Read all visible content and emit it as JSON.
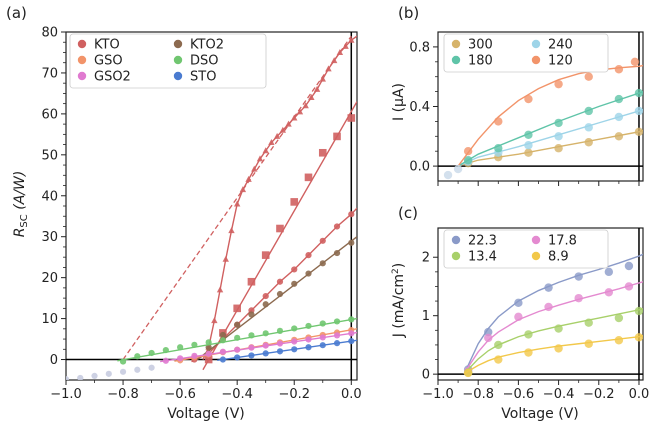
{
  "figure": {
    "panels": [
      "(a)",
      "(b)",
      "(c)"
    ]
  },
  "chart_data": [
    {
      "type": "line",
      "panel_label": "(a)",
      "xlabel": "Voltage (V)",
      "ylabel_main": "R",
      "ylabel_sub": "SC",
      "ylabel_unit": " (A/W)",
      "xlim": [
        -1.0,
        0.02
      ],
      "ylim": [
        -5,
        80
      ],
      "xticks": [
        -1.0,
        -0.8,
        -0.6,
        -0.4,
        -0.2,
        0.0
      ],
      "xtick_labels": [
        "−1.0",
        "−0.8",
        "−0.6",
        "−0.4",
        "−0.2",
        "0.0"
      ],
      "yticks": [
        0,
        10,
        20,
        30,
        40,
        50,
        60,
        70,
        80
      ],
      "ytick_labels": [
        "0",
        "10",
        "20",
        "30",
        "40",
        "50",
        "60",
        "70",
        "80"
      ],
      "legend_position": "top-left",
      "legend": [
        "KTO",
        "KTO2",
        "GSO",
        "DSO",
        "GSO2",
        "STO"
      ],
      "dashed_line": {
        "color": "#d06060",
        "x": [
          -0.8,
          0.0
        ],
        "y": [
          0,
          79
        ]
      },
      "series": [
        {
          "name": "KTO",
          "color": "#d06060",
          "marker": "triangle",
          "x": [
            -0.5,
            -0.48,
            -0.46,
            -0.44,
            -0.42,
            -0.4,
            -0.38,
            -0.36,
            -0.34,
            -0.32,
            -0.3,
            -0.28,
            -0.26,
            -0.24,
            -0.22,
            -0.2,
            -0.18,
            -0.16,
            -0.14,
            -0.12,
            -0.1,
            -0.08,
            -0.06,
            -0.04,
            -0.02,
            0.0
          ],
          "y": [
            3,
            9.5,
            17,
            24.5,
            31.5,
            38,
            41.5,
            44,
            46.5,
            49,
            51,
            53,
            54.5,
            56,
            57.5,
            59,
            60.5,
            62,
            64,
            66,
            68.5,
            71,
            73,
            75,
            76.5,
            78
          ],
          "fit_x": [
            -0.52,
            -0.5,
            -0.48,
            -0.46,
            -0.44,
            -0.42,
            -0.4,
            -0.38,
            -0.36,
            -0.34,
            -0.32,
            -0.3,
            -0.28,
            -0.26,
            -0.24,
            -0.22,
            -0.2,
            -0.18,
            -0.16,
            -0.14,
            -0.12,
            -0.1,
            -0.08,
            -0.06,
            -0.04,
            -0.02,
            0.0,
            0.02
          ],
          "fit_y": [
            0,
            3,
            9.5,
            17,
            24.5,
            31.5,
            38,
            41.5,
            44,
            46.5,
            49,
            51,
            53,
            54.5,
            56,
            57.5,
            59,
            60.5,
            62,
            64,
            66,
            68.5,
            71,
            73,
            75,
            76.5,
            78,
            79
          ]
        },
        {
          "name": "KTO",
          "color": "#d06060",
          "marker": "square",
          "x": [
            -0.5,
            -0.45,
            -0.4,
            -0.35,
            -0.3,
            -0.25,
            -0.2,
            -0.15,
            -0.1,
            -0.05,
            0.0
          ],
          "y": [
            0,
            6.5,
            12.5,
            19,
            25.5,
            32,
            38.5,
            44.5,
            50.5,
            54.5,
            59
          ],
          "fit_x": [
            -0.52,
            0.02
          ],
          "fit_y": [
            -2.5,
            63
          ]
        },
        {
          "name": "KTO",
          "color": "#d06060",
          "marker": "circle",
          "x": [
            -0.55,
            -0.5,
            -0.45,
            -0.4,
            -0.35,
            -0.3,
            -0.25,
            -0.2,
            -0.15,
            -0.1,
            -0.05,
            0.0
          ],
          "y": [
            0,
            1.5,
            5,
            8.5,
            12,
            15.5,
            19,
            22,
            25.5,
            29,
            32.5,
            35.5
          ],
          "fit_x": [
            -0.56,
            -0.5,
            -0.45,
            -0.4,
            -0.35,
            -0.3,
            -0.25,
            -0.2,
            -0.15,
            -0.1,
            -0.05,
            0.0,
            0.02
          ],
          "fit_y": [
            -0.5,
            1.5,
            5,
            8.5,
            12,
            15.5,
            19,
            22,
            25.5,
            29,
            32.5,
            35.5,
            37
          ]
        },
        {
          "name": "KTO2",
          "color": "#8c6a4f",
          "marker": "circle",
          "x": [
            -0.5,
            -0.45,
            -0.4,
            -0.35,
            -0.3,
            -0.25,
            -0.2,
            -0.15,
            -0.1,
            -0.05,
            0.0
          ],
          "y": [
            3,
            6,
            8.5,
            11,
            13.5,
            16,
            18.5,
            21,
            23.5,
            26,
            28.5
          ],
          "fit_x": [
            -0.54,
            0.02
          ],
          "fit_y": [
            0,
            30
          ]
        },
        {
          "name": "DSO",
          "color": "#70c670",
          "marker": "circle",
          "x": [
            -0.8,
            -0.75,
            -0.7,
            -0.65,
            -0.6,
            -0.55,
            -0.5,
            -0.45,
            -0.4,
            -0.35,
            -0.3,
            -0.25,
            -0.2,
            -0.15,
            -0.1,
            -0.05,
            0.0
          ],
          "y": [
            -0.5,
            0.8,
            1.6,
            2.3,
            3,
            3.6,
            4.2,
            4.7,
            5.3,
            5.9,
            6.4,
            7,
            7.6,
            8.2,
            8.8,
            9.3,
            9.8
          ],
          "fit_x": [
            -0.82,
            0.02
          ],
          "fit_y": [
            -0.3,
            10
          ]
        },
        {
          "name": "GSO",
          "color": "#f2946a",
          "marker": "circle",
          "x": [
            -0.6,
            -0.55,
            -0.5,
            -0.45,
            -0.4,
            -0.35,
            -0.3,
            -0.25,
            -0.2,
            -0.15,
            -0.1,
            -0.05,
            0.0
          ],
          "y": [
            -0.2,
            0.5,
            1.2,
            1.8,
            2.4,
            3,
            3.6,
            4.2,
            4.8,
            5.4,
            6,
            6.6,
            7.2
          ],
          "fit_x": [
            -0.62,
            0.02
          ],
          "fit_y": [
            -0.4,
            7.5
          ]
        },
        {
          "name": "GSO2",
          "color": "#e07ad0",
          "marker": "circle",
          "x": [
            -0.65,
            -0.6,
            -0.55,
            -0.5,
            -0.45,
            -0.4,
            -0.35,
            -0.3,
            -0.25,
            -0.2,
            -0.15,
            -0.1,
            -0.05,
            0.0
          ],
          "y": [
            -0.3,
            0.3,
            0.9,
            1.4,
            1.9,
            2.4,
            2.9,
            3.4,
            3.9,
            4.4,
            4.9,
            5.4,
            5.9,
            6.4
          ],
          "fit_x": [
            -0.67,
            0.02
          ],
          "fit_y": [
            -0.5,
            6.6
          ]
        },
        {
          "name": "STO",
          "color": "#4a7bd0",
          "marker": "circle",
          "x": [
            -0.45,
            -0.4,
            -0.35,
            -0.3,
            -0.25,
            -0.2,
            -0.15,
            -0.1,
            -0.05,
            0.0
          ],
          "y": [
            0,
            0.5,
            1,
            1.5,
            2,
            2.5,
            3,
            3.5,
            4,
            4.5
          ],
          "fit_x": [
            -0.47,
            0.02
          ],
          "fit_y": [
            -0.2,
            4.7
          ]
        },
        {
          "name": "",
          "color": "#c8cce0",
          "marker": "circle",
          "x": [
            -1.0,
            -0.95,
            -0.9,
            -0.85,
            -0.8,
            -0.75,
            -0.7
          ],
          "y": [
            -4.8,
            -4.5,
            -4,
            -3.5,
            -3,
            -2.5,
            -2
          ]
        }
      ]
    },
    {
      "type": "line",
      "panel_label": "(b)",
      "xlabel": "",
      "ylabel": "I (μA)",
      "xlim": [
        -1.0,
        0.02
      ],
      "ylim": [
        -0.1,
        0.9
      ],
      "xticks": [
        -1.0,
        -0.8,
        -0.6,
        -0.4,
        -0.2,
        0.0
      ],
      "yticks": [
        0.0,
        0.4,
        0.8
      ],
      "ytick_labels": [
        "0.0",
        "0.4",
        "0.8"
      ],
      "legend_position": "top-left",
      "legend": [
        "300",
        "240",
        "180",
        "120"
      ],
      "series": [
        {
          "name": "300",
          "color": "#d6b36a",
          "x": [
            -0.85,
            -0.7,
            -0.55,
            -0.4,
            -0.25,
            -0.1,
            0.0
          ],
          "y": [
            0.02,
            0.06,
            0.09,
            0.12,
            0.16,
            0.2,
            0.23
          ],
          "fit_x": [
            -0.9,
            -0.8,
            -0.6,
            -0.4,
            -0.2,
            0.0,
            0.02
          ],
          "fit_y": [
            0.0,
            0.04,
            0.08,
            0.13,
            0.18,
            0.23,
            0.24
          ]
        },
        {
          "name": "240",
          "color": "#9ed4e8",
          "x": [
            -0.85,
            -0.7,
            -0.55,
            -0.4,
            -0.25,
            -0.1,
            0.0
          ],
          "y": [
            0.03,
            0.09,
            0.14,
            0.2,
            0.26,
            0.33,
            0.37
          ],
          "fit_x": [
            -0.9,
            -0.8,
            -0.6,
            -0.4,
            -0.2,
            0.0,
            0.02
          ],
          "fit_y": [
            0.0,
            0.06,
            0.13,
            0.21,
            0.29,
            0.37,
            0.38
          ]
        },
        {
          "name": "180",
          "color": "#5fc4a8",
          "x": [
            -0.85,
            -0.7,
            -0.55,
            -0.4,
            -0.25,
            -0.1,
            0.0
          ],
          "y": [
            0.04,
            0.12,
            0.21,
            0.29,
            0.37,
            0.45,
            0.49
          ],
          "fit_x": [
            -0.9,
            -0.8,
            -0.6,
            -0.4,
            -0.2,
            0.0,
            0.02
          ],
          "fit_y": [
            0.0,
            0.08,
            0.19,
            0.3,
            0.4,
            0.49,
            0.5
          ]
        },
        {
          "name": "120",
          "color": "#f2946a",
          "x": [
            -0.85,
            -0.7,
            -0.55,
            -0.4,
            -0.25,
            -0.1,
            -0.02
          ],
          "y": [
            0.1,
            0.3,
            0.45,
            0.55,
            0.6,
            0.65,
            0.7
          ],
          "fit_x": [
            -0.9,
            -0.8,
            -0.7,
            -0.6,
            -0.5,
            -0.4,
            -0.3,
            -0.2,
            -0.1,
            0.0,
            0.02
          ],
          "fit_y": [
            0.0,
            0.18,
            0.33,
            0.44,
            0.52,
            0.58,
            0.62,
            0.645,
            0.66,
            0.67,
            0.675
          ]
        },
        {
          "name": "",
          "color": "#c8d8e8",
          "x": [
            -0.95,
            -0.9
          ],
          "y": [
            -0.06,
            -0.02
          ]
        }
      ]
    },
    {
      "type": "line",
      "panel_label": "(c)",
      "xlabel": "Voltage (V)",
      "ylabel": "J (mA/cm",
      "ylabel_sup": "2",
      "ylabel_end": ")",
      "xlim": [
        -1.0,
        0.02
      ],
      "ylim": [
        -0.1,
        2.5
      ],
      "xticks": [
        -1.0,
        -0.8,
        -0.6,
        -0.4,
        -0.2,
        0.0
      ],
      "xtick_labels": [
        "−1.0",
        "−0.8",
        "−0.6",
        "−0.4",
        "−0.2",
        "0.0"
      ],
      "yticks": [
        0,
        1,
        2
      ],
      "ytick_labels": [
        "0",
        "1",
        "2"
      ],
      "legend_position": "top-left",
      "legend": [
        "22.3",
        "17.8",
        "13.4",
        "8.9"
      ],
      "series": [
        {
          "name": "22.3",
          "color": "#8a9ac8",
          "x": [
            -0.85,
            -0.75,
            -0.6,
            -0.45,
            -0.3,
            -0.15,
            -0.05
          ],
          "y": [
            0.08,
            0.72,
            1.22,
            1.48,
            1.67,
            1.75,
            1.85
          ],
          "fit_x": [
            -0.87,
            -0.85,
            -0.8,
            -0.75,
            -0.7,
            -0.6,
            -0.5,
            -0.4,
            -0.3,
            -0.2,
            -0.1,
            0.0,
            0.02
          ],
          "fit_y": [
            0.0,
            0.15,
            0.52,
            0.78,
            0.98,
            1.25,
            1.43,
            1.57,
            1.69,
            1.79,
            1.9,
            2.02,
            2.05
          ]
        },
        {
          "name": "17.8",
          "color": "#e48ad0",
          "x": [
            -0.85,
            -0.75,
            -0.6,
            -0.45,
            -0.3,
            -0.15,
            -0.05
          ],
          "y": [
            0.05,
            0.62,
            0.98,
            1.15,
            1.3,
            1.4,
            1.5
          ],
          "fit_x": [
            -0.87,
            -0.85,
            -0.8,
            -0.75,
            -0.7,
            -0.6,
            -0.5,
            -0.4,
            -0.3,
            -0.2,
            -0.1,
            0.0,
            0.02
          ],
          "fit_y": [
            0.0,
            0.12,
            0.38,
            0.58,
            0.72,
            0.93,
            1.07,
            1.18,
            1.28,
            1.37,
            1.46,
            1.56,
            1.58
          ]
        },
        {
          "name": "13.4",
          "color": "#a8d06a",
          "x": [
            -0.85,
            -0.7,
            -0.55,
            -0.4,
            -0.25,
            -0.1,
            0.0
          ],
          "y": [
            0.03,
            0.5,
            0.68,
            0.78,
            0.88,
            0.96,
            1.08
          ],
          "fit_x": [
            -0.87,
            -0.85,
            -0.8,
            -0.75,
            -0.7,
            -0.6,
            -0.5,
            -0.4,
            -0.3,
            -0.2,
            -0.1,
            0.0,
            0.02
          ],
          "fit_y": [
            0.0,
            0.08,
            0.26,
            0.4,
            0.5,
            0.64,
            0.74,
            0.82,
            0.89,
            0.96,
            1.03,
            1.1,
            1.12
          ]
        },
        {
          "name": "8.9",
          "color": "#f2c84a",
          "x": [
            -0.85,
            -0.7,
            -0.55,
            -0.4,
            -0.25,
            -0.1,
            0.0
          ],
          "y": [
            0.02,
            0.25,
            0.37,
            0.44,
            0.52,
            0.58,
            0.63
          ],
          "fit_x": [
            -0.87,
            -0.85,
            -0.8,
            -0.75,
            -0.7,
            -0.6,
            -0.5,
            -0.4,
            -0.3,
            -0.2,
            -0.1,
            0.0,
            0.02
          ],
          "fit_y": [
            0.0,
            0.05,
            0.15,
            0.23,
            0.29,
            0.37,
            0.43,
            0.48,
            0.52,
            0.56,
            0.6,
            0.64,
            0.66
          ]
        }
      ]
    }
  ]
}
